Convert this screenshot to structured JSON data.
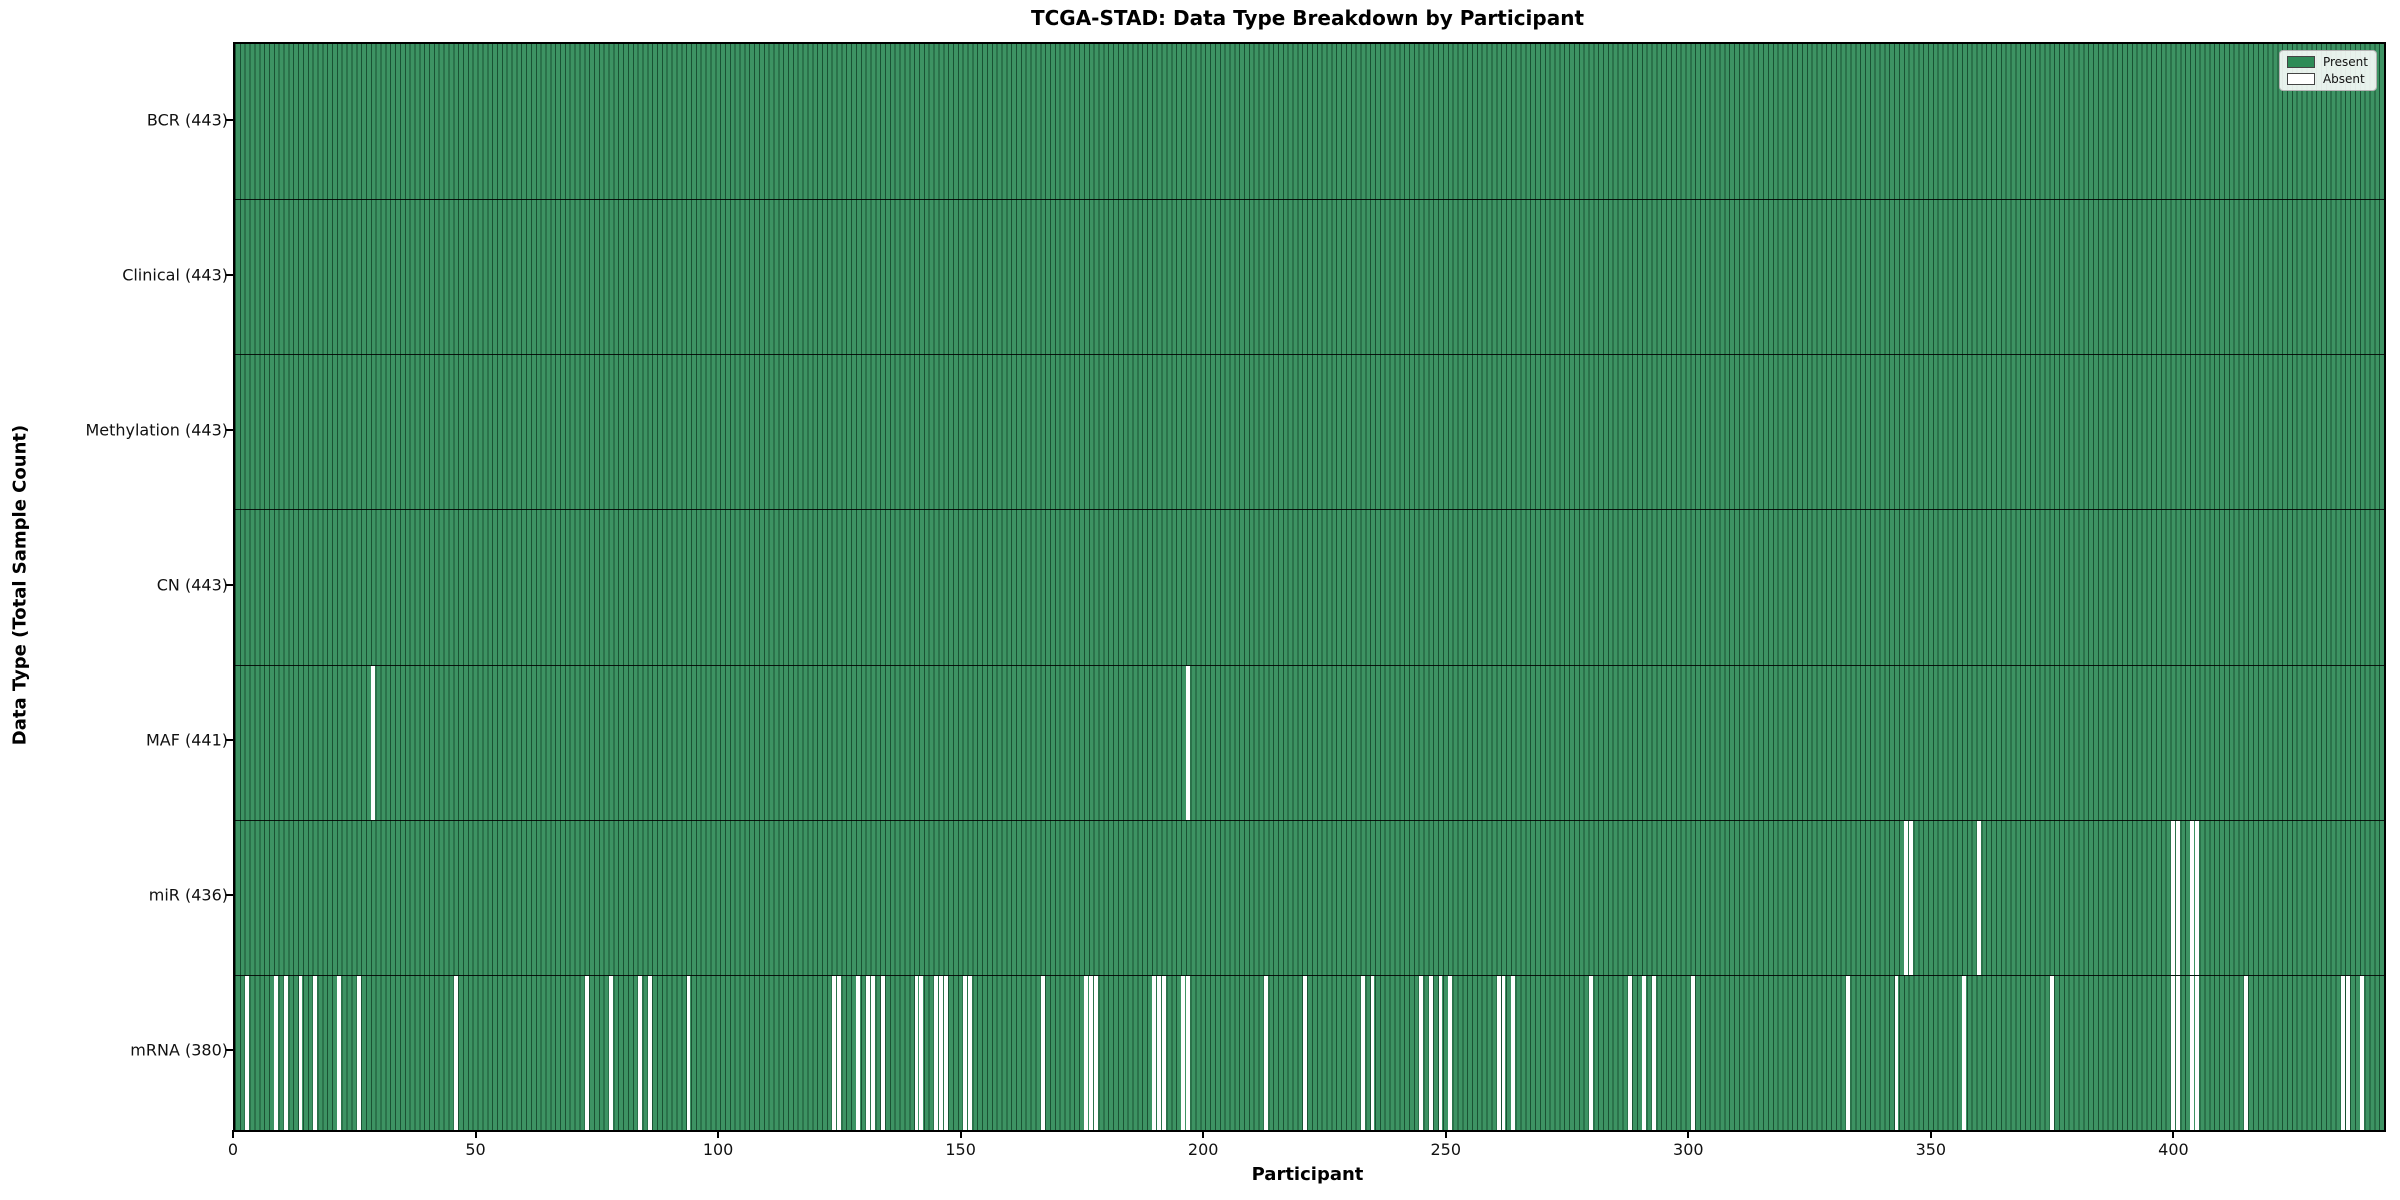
{
  "chart_data": {
    "type": "heatmap",
    "title": "TCGA-STAD: Data Type Breakdown by Participant",
    "xlabel": "Participant",
    "ylabel": "Data Type (Total Sample Count)",
    "x_ticks": [
      0,
      50,
      100,
      150,
      200,
      250,
      300,
      350,
      400
    ],
    "x_max": 443,
    "n_participants": 443,
    "grid": false,
    "legend_position": "upper right",
    "colors": {
      "present": "#2e8b57",
      "absent": "#ffffff",
      "cell_edge": "#0b2316"
    },
    "legend": [
      {
        "label": "Present",
        "color": "#2e8b57"
      },
      {
        "label": "Absent",
        "color": "#ffffff"
      }
    ],
    "rows": [
      {
        "name": "bcr",
        "label": "BCR (443)",
        "total": 443,
        "absent": []
      },
      {
        "name": "clinical",
        "label": "Clinical (443)",
        "total": 443,
        "absent": []
      },
      {
        "name": "methylation",
        "label": "Methylation (443)",
        "total": 443,
        "absent": []
      },
      {
        "name": "cn",
        "label": "CN (443)",
        "total": 443,
        "absent": []
      },
      {
        "name": "maf",
        "label": "MAF (441)",
        "total": 441,
        "absent": [
          28,
          196
        ]
      },
      {
        "name": "mir",
        "label": "miR (436)",
        "total": 436,
        "absent": [
          344,
          345,
          359,
          399,
          400,
          403,
          404
        ]
      },
      {
        "name": "mrna",
        "label": "mRNA (380)",
        "total": 380,
        "absent": [
          2,
          8,
          10,
          13,
          16,
          21,
          25,
          45,
          72,
          77,
          83,
          85,
          93,
          123,
          124,
          128,
          130,
          131,
          133,
          140,
          141,
          144,
          145,
          146,
          150,
          151,
          166,
          175,
          176,
          177,
          189,
          190,
          191,
          195,
          196,
          212,
          220,
          232,
          234,
          244,
          246,
          248,
          250,
          260,
          261,
          263,
          279,
          287,
          290,
          292,
          300,
          332,
          342,
          356,
          374,
          399,
          400,
          403,
          404,
          414,
          434,
          435,
          438
        ]
      }
    ]
  }
}
